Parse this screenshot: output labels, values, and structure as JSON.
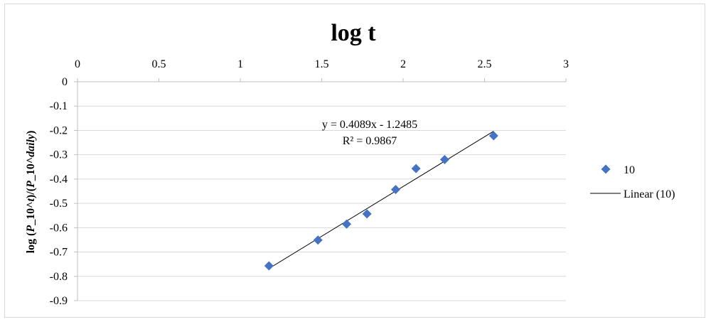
{
  "chart_data": {
    "type": "scatter",
    "title": "log t",
    "xlabel": "",
    "ylabel_parts": [
      {
        "text": "log (",
        "italic": false
      },
      {
        "text": "P",
        "italic": true
      },
      {
        "text": "_10^",
        "italic": false
      },
      {
        "text": "t",
        "italic": true
      },
      {
        "text": ")/(",
        "italic": false
      },
      {
        "text": "P",
        "italic": true
      },
      {
        "text": "_10^",
        "italic": false
      },
      {
        "text": "daily",
        "italic": true
      },
      {
        "text": ")",
        "italic": false
      }
    ],
    "xlim": [
      0,
      3
    ],
    "ylim": [
      -0.9,
      0
    ],
    "x_ticks": [
      "0",
      "0.5",
      "1",
      "1.5",
      "2",
      "2.5",
      "3"
    ],
    "y_ticks": [
      "0",
      "-0.1",
      "-0.2",
      "-0.3",
      "-0.4",
      "-0.5",
      "-0.6",
      "-0.7",
      "-0.8",
      "-0.9"
    ],
    "x_axis_position": "top",
    "grid": "horizontal",
    "legend_position": "right",
    "series": [
      {
        "name": "10",
        "marker": "diamond",
        "color": "#4472c4",
        "x": [
          1.176,
          1.477,
          1.653,
          1.778,
          1.954,
          2.079,
          2.255,
          2.556
        ],
        "y": [
          -0.757,
          -0.651,
          -0.585,
          -0.543,
          -0.443,
          -0.357,
          -0.32,
          -0.222
        ]
      }
    ],
    "trendline": {
      "name": "Linear (10)",
      "type": "linear",
      "slope": 0.4089,
      "intercept": -1.2485,
      "x_range": [
        1.176,
        2.556
      ],
      "color": "#000000",
      "equation_label": "y = 0.4089x - 1.2485",
      "r2_label": "R² = 0.9867"
    }
  }
}
